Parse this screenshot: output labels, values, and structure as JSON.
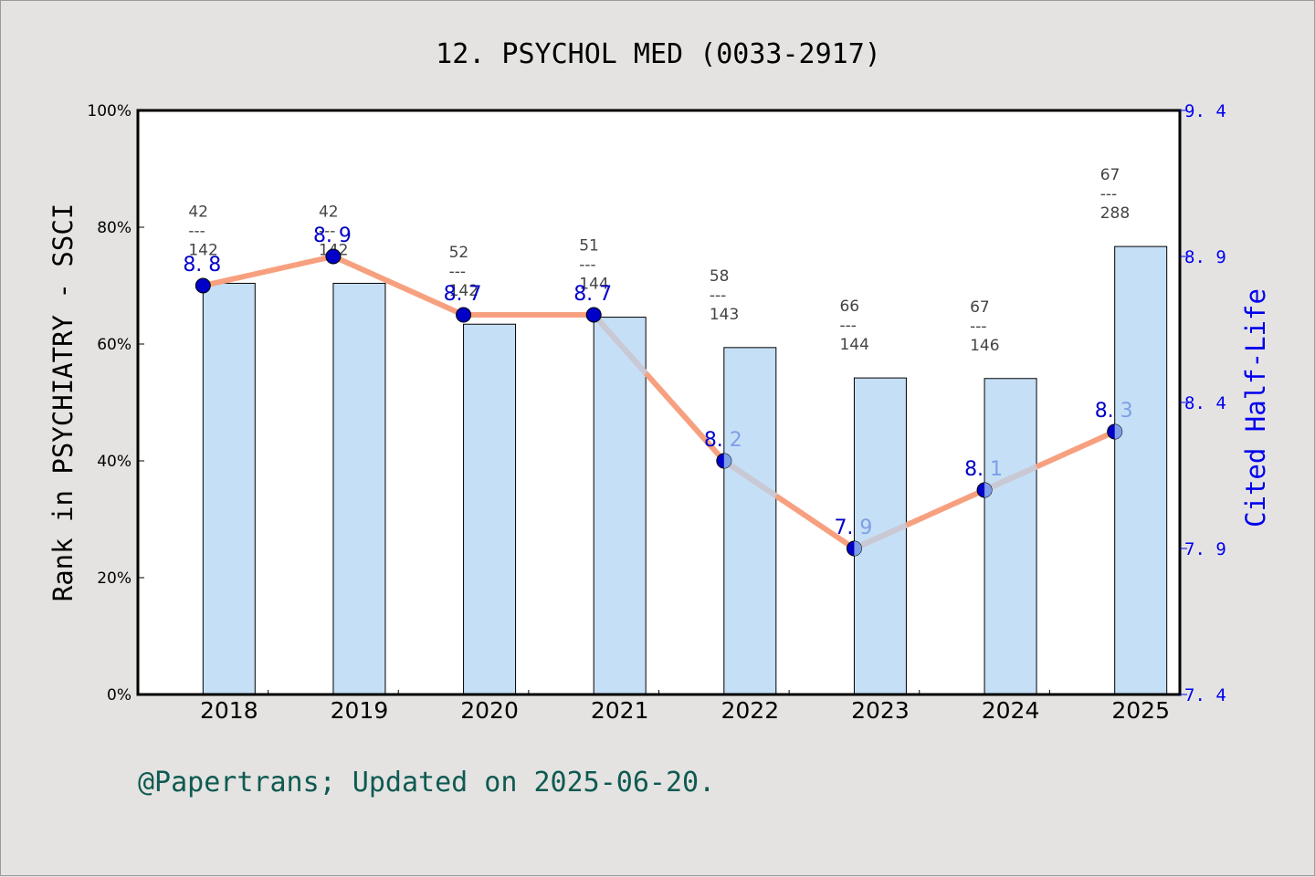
{
  "title": "12. PSYCHOL MED (0033-2917)",
  "footer": "@Papertrans; Updated on 2025-06-20.",
  "colors": {
    "background": "#e4e3e1",
    "plot_bg": "#ffffff",
    "bar_fill": "#c5dff6",
    "bar_stroke": "#000000",
    "line_color": "#f7a07f",
    "line_faded": "#c9c9d6",
    "marker_fill": "#0000c8",
    "right_axis": "#0000ee",
    "footer": "#0e5a52"
  },
  "chart_data": {
    "type": "bar+line",
    "title": "12. PSYCHOL MED (0033-2917)",
    "categories": [
      "2018",
      "2019",
      "2020",
      "2021",
      "2022",
      "2023",
      "2024",
      "2025"
    ],
    "xlabel": "",
    "ylabel": "Rank in PSYCHIATRY - SSCI",
    "ylabel_right": "Cited Half-Life",
    "ylim": [
      0,
      100
    ],
    "ylim_right": [
      7.4,
      9.4
    ],
    "yticks": [
      "0%",
      "20%",
      "40%",
      "60%",
      "80%",
      "100%"
    ],
    "yticks_right": [
      "7.4",
      "7.9",
      "8.4",
      "8.9",
      "9.4"
    ],
    "grid": false,
    "legend": null,
    "series": [
      {
        "name": "Rank percentile (bars)",
        "type": "bar",
        "axis": "left",
        "values": [
          70.4,
          70.4,
          63.4,
          64.6,
          59.4,
          54.2,
          54.1,
          76.7
        ]
      },
      {
        "name": "Cited Half-Life",
        "type": "line",
        "axis": "right",
        "values": [
          8.8,
          8.9,
          8.7,
          8.7,
          8.2,
          7.9,
          8.1,
          8.3
        ]
      }
    ],
    "annotations": [
      {
        "year": "2018",
        "rank": "42",
        "total": "142"
      },
      {
        "year": "2019",
        "rank": "42",
        "total": "142"
      },
      {
        "year": "2020",
        "rank": "52",
        "total": "142"
      },
      {
        "year": "2021",
        "rank": "51",
        "total": "144"
      },
      {
        "year": "2022",
        "rank": "58",
        "total": "143"
      },
      {
        "year": "2023",
        "rank": "66",
        "total": "144"
      },
      {
        "year": "2024",
        "rank": "67",
        "total": "146"
      },
      {
        "year": "2025",
        "rank": "67",
        "total": "288"
      }
    ],
    "point_labels": [
      "8.8",
      "8.9",
      "8.7",
      "8.7",
      "8.2",
      "7.9",
      "8.1",
      "8.3"
    ],
    "separator": "---"
  }
}
